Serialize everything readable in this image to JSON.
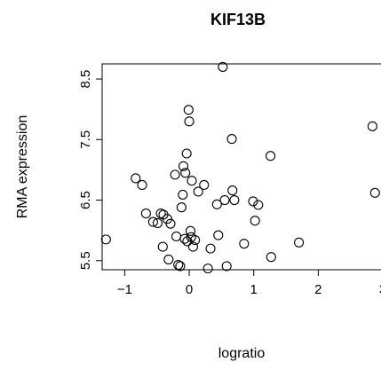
{
  "chart_data": {
    "type": "scatter",
    "title": "KIF13B",
    "xlabel": "logratio",
    "ylabel": "RMA expression",
    "xlim": [
      -1.35,
      3.0
    ],
    "ylim": [
      5.35,
      8.75
    ],
    "x_ticks": [
      -1,
      0,
      1,
      2,
      3
    ],
    "x_tick_labels": [
      "−1",
      "0",
      "1",
      "2",
      "3"
    ],
    "y_ticks": [
      5.5,
      6.5,
      7.5,
      8.5
    ],
    "y_tick_labels": [
      "5.5",
      "6.5",
      "7.5",
      "8.5"
    ],
    "grid": false,
    "legend": "none",
    "points": [
      {
        "x": -1.29,
        "y": 5.85
      },
      {
        "x": -0.83,
        "y": 6.86
      },
      {
        "x": -0.73,
        "y": 6.75
      },
      {
        "x": -0.67,
        "y": 6.28
      },
      {
        "x": -0.56,
        "y": 6.14
      },
      {
        "x": -0.49,
        "y": 6.12
      },
      {
        "x": -0.44,
        "y": 6.28
      },
      {
        "x": -0.41,
        "y": 5.73
      },
      {
        "x": -0.4,
        "y": 6.26
      },
      {
        "x": -0.34,
        "y": 6.19
      },
      {
        "x": -0.32,
        "y": 5.52
      },
      {
        "x": -0.29,
        "y": 6.11
      },
      {
        "x": -0.22,
        "y": 6.92
      },
      {
        "x": -0.2,
        "y": 5.9
      },
      {
        "x": -0.17,
        "y": 5.43
      },
      {
        "x": -0.14,
        "y": 5.41
      },
      {
        "x": -0.12,
        "y": 6.38
      },
      {
        "x": -0.1,
        "y": 6.59
      },
      {
        "x": -0.09,
        "y": 7.06
      },
      {
        "x": -0.07,
        "y": 5.86
      },
      {
        "x": -0.06,
        "y": 6.95
      },
      {
        "x": -0.04,
        "y": 7.27
      },
      {
        "x": -0.03,
        "y": 5.82
      },
      {
        "x": -0.01,
        "y": 7.99
      },
      {
        "x": 0.0,
        "y": 7.8
      },
      {
        "x": 0.02,
        "y": 5.99
      },
      {
        "x": 0.03,
        "y": 5.89
      },
      {
        "x": 0.04,
        "y": 6.82
      },
      {
        "x": 0.06,
        "y": 5.73
      },
      {
        "x": 0.09,
        "y": 5.84
      },
      {
        "x": 0.14,
        "y": 6.64
      },
      {
        "x": 0.23,
        "y": 6.75
      },
      {
        "x": 0.29,
        "y": 5.37
      },
      {
        "x": 0.33,
        "y": 5.7
      },
      {
        "x": 0.43,
        "y": 6.43
      },
      {
        "x": 0.45,
        "y": 5.92
      },
      {
        "x": 0.52,
        "y": 8.7
      },
      {
        "x": 0.55,
        "y": 6.5
      },
      {
        "x": 0.58,
        "y": 5.41
      },
      {
        "x": 0.66,
        "y": 7.51
      },
      {
        "x": 0.67,
        "y": 6.66
      },
      {
        "x": 0.7,
        "y": 6.5
      },
      {
        "x": 0.85,
        "y": 5.78
      },
      {
        "x": 0.99,
        "y": 6.48
      },
      {
        "x": 1.02,
        "y": 6.16
      },
      {
        "x": 1.07,
        "y": 6.42
      },
      {
        "x": 1.26,
        "y": 7.23
      },
      {
        "x": 1.27,
        "y": 5.56
      },
      {
        "x": 1.7,
        "y": 5.8
      },
      {
        "x": 2.84,
        "y": 7.72
      },
      {
        "x": 2.88,
        "y": 6.62
      }
    ]
  }
}
